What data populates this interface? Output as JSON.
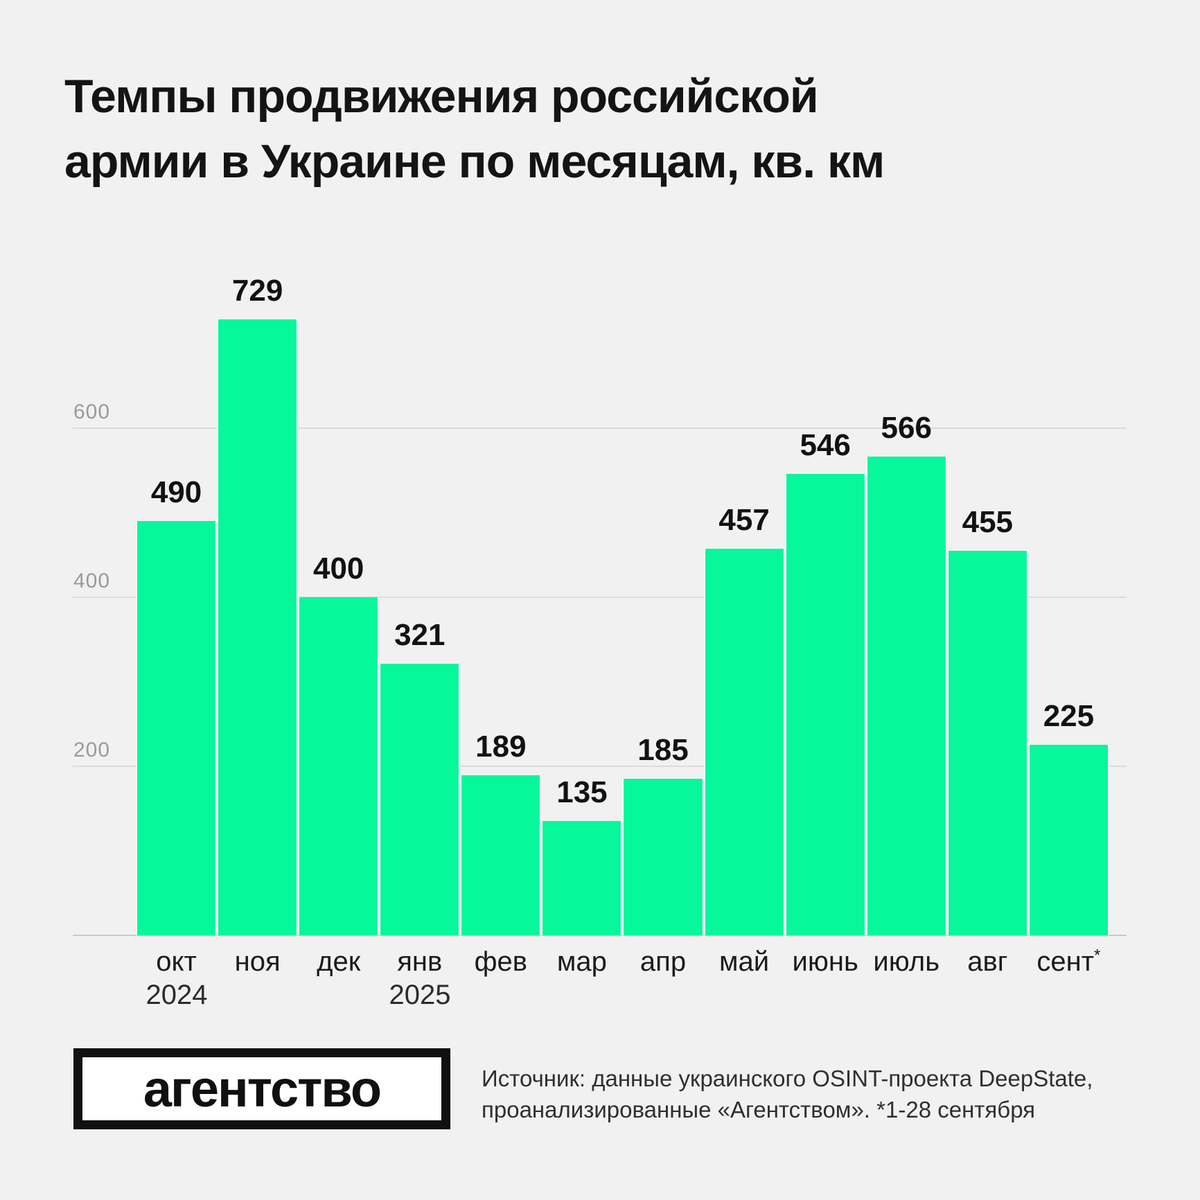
{
  "page": {
    "background": "#F1F1F2"
  },
  "title": {
    "lines": [
      "Темпы продвижения российской",
      "армии в Украине по месяцам, кв. км"
    ]
  },
  "chart_data": {
    "type": "bar",
    "title": "Темпы продвижения российской армии в Украине по месяцам, кв. км",
    "ylabel": "кв. км",
    "xlabel": "",
    "categories": [
      "окт",
      "ноя",
      "дек",
      "янв",
      "фев",
      "мар",
      "апр",
      "май",
      "июнь",
      "июль",
      "авг",
      "сент*"
    ],
    "values": [
      490,
      729,
      400,
      321,
      189,
      135,
      185,
      457,
      546,
      566,
      455,
      225
    ],
    "year_labels": [
      {
        "label": "2024",
        "slot_index": 0
      },
      {
        "label": "2025",
        "slot_index": 3
      }
    ],
    "ylim": [
      0,
      760
    ],
    "yticks": [
      200,
      400,
      600
    ],
    "grid": "horizontal",
    "legend_position": "none",
    "bar_color": "#07F79B",
    "bar_gap_color": "#FFFFFF",
    "gridline_color": "#DCDCDC",
    "baseline_color": "#C9C9C9",
    "ytick_color": "#9A9A9A",
    "value_label_color": "#121212",
    "value_labels_shown": true,
    "footnote_marker": "*"
  },
  "footer": {
    "logo_text": "агентство",
    "source_lines": [
      "Источник: данные украинского OSINT-проекта DeepState,",
      "проанализированные «Агентством». *1-28 сентября"
    ]
  }
}
